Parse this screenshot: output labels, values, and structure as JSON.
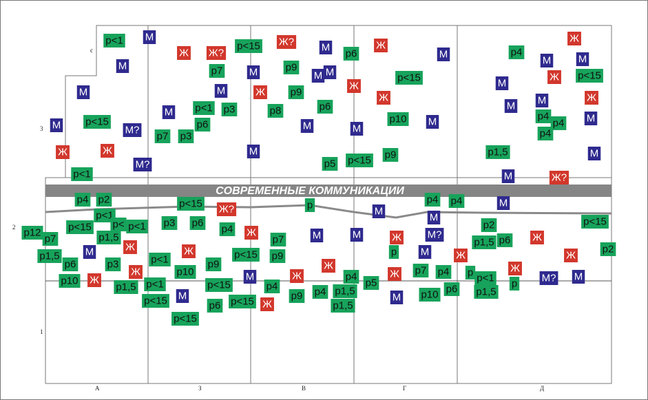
{
  "band_title": "СОВРЕМЕННЫЕ КОММУНИКАЦИИ",
  "row_labels": [
    "є",
    "3",
    "2",
    "1"
  ],
  "columns": [
    "А",
    "З",
    "В",
    "Г",
    "Д"
  ],
  "colors": {
    "green": "#17a35b",
    "red": "#d2372c",
    "blue": "#2f2a8e"
  },
  "tags": [
    {
      "text": "р<1",
      "kind": "green"
    },
    {
      "text": "М",
      "kind": "blue"
    },
    {
      "text": "Ж",
      "kind": "red"
    },
    {
      "text": "Ж?",
      "kind": "red"
    },
    {
      "text": "р<15",
      "kind": "green"
    },
    {
      "text": "Ж?",
      "kind": "red"
    },
    {
      "text": "М",
      "kind": "blue"
    },
    {
      "text": "р6",
      "kind": "green"
    },
    {
      "text": "Ж",
      "kind": "red"
    },
    {
      "text": "М",
      "kind": "blue"
    },
    {
      "text": "р4",
      "kind": "green"
    },
    {
      "text": "Ж",
      "kind": "red"
    },
    {
      "text": "М",
      "kind": "blue"
    },
    {
      "text": "М",
      "kind": "blue"
    },
    {
      "text": "М",
      "kind": "blue"
    },
    {
      "text": "р7",
      "kind": "green"
    },
    {
      "text": "М",
      "kind": "blue"
    },
    {
      "text": "р9",
      "kind": "green"
    },
    {
      "text": "М",
      "kind": "blue"
    },
    {
      "text": "М",
      "kind": "blue"
    },
    {
      "text": "р<15",
      "kind": "green"
    },
    {
      "text": "Ж",
      "kind": "red"
    },
    {
      "text": "р<15",
      "kind": "green"
    },
    {
      "text": "М",
      "kind": "blue"
    },
    {
      "text": "М",
      "kind": "blue"
    },
    {
      "text": "Ж",
      "kind": "red"
    },
    {
      "text": "р9",
      "kind": "green"
    },
    {
      "text": "Ж",
      "kind": "red"
    },
    {
      "text": "М",
      "kind": "blue"
    },
    {
      "text": "Ж",
      "kind": "red"
    },
    {
      "text": "М",
      "kind": "blue"
    },
    {
      "text": "Ж",
      "kind": "red"
    },
    {
      "text": "р<1",
      "kind": "green"
    },
    {
      "text": "р3",
      "kind": "green"
    },
    {
      "text": "М",
      "kind": "blue"
    },
    {
      "text": "р8",
      "kind": "green"
    },
    {
      "text": "р6",
      "kind": "green"
    },
    {
      "text": "М",
      "kind": "blue"
    },
    {
      "text": "р4",
      "kind": "green"
    },
    {
      "text": "р4",
      "kind": "green"
    },
    {
      "text": "М",
      "kind": "blue"
    },
    {
      "text": "р<15",
      "kind": "green"
    },
    {
      "text": "р6",
      "kind": "green"
    },
    {
      "text": "М",
      "kind": "blue"
    },
    {
      "text": "р10",
      "kind": "green"
    },
    {
      "text": "М",
      "kind": "blue"
    },
    {
      "text": "М",
      "kind": "blue"
    },
    {
      "text": "М?",
      "kind": "blue"
    },
    {
      "text": "р7",
      "kind": "green"
    },
    {
      "text": "р3",
      "kind": "green"
    },
    {
      "text": "р4",
      "kind": "green"
    },
    {
      "text": "М",
      "kind": "blue"
    },
    {
      "text": "Ж",
      "kind": "red"
    },
    {
      "text": "Ж",
      "kind": "red"
    },
    {
      "text": "М",
      "kind": "blue"
    },
    {
      "text": "р9",
      "kind": "green"
    },
    {
      "text": "р1,5",
      "kind": "green"
    },
    {
      "text": "М",
      "kind": "blue"
    },
    {
      "text": "М?",
      "kind": "blue"
    },
    {
      "text": "р5",
      "kind": "green"
    },
    {
      "text": "р<15",
      "kind": "green"
    },
    {
      "text": "р<1",
      "kind": "green"
    },
    {
      "text": "М",
      "kind": "blue"
    },
    {
      "text": "Ж?",
      "kind": "red"
    },
    {
      "text": "р4",
      "kind": "green"
    },
    {
      "text": "р2",
      "kind": "green"
    },
    {
      "text": "р<1",
      "kind": "green"
    },
    {
      "text": "р<",
      "kind": "green"
    },
    {
      "text": "р<1",
      "kind": "green"
    },
    {
      "text": "р<15",
      "kind": "green"
    },
    {
      "text": "Ж?",
      "kind": "red"
    },
    {
      "text": "р",
      "kind": "green"
    },
    {
      "text": "М",
      "kind": "blue"
    },
    {
      "text": "р4",
      "kind": "green"
    },
    {
      "text": "р4",
      "kind": "green"
    },
    {
      "text": "М",
      "kind": "blue"
    },
    {
      "text": "М",
      "kind": "blue"
    },
    {
      "text": "р2",
      "kind": "green"
    },
    {
      "text": "р<15",
      "kind": "green"
    },
    {
      "text": "р12",
      "kind": "green"
    },
    {
      "text": "р7",
      "kind": "green"
    },
    {
      "text": "р<15",
      "kind": "green"
    },
    {
      "text": "р3",
      "kind": "green"
    },
    {
      "text": "р6",
      "kind": "green"
    },
    {
      "text": "р4",
      "kind": "green"
    },
    {
      "text": "Ж",
      "kind": "red"
    },
    {
      "text": "р1,5",
      "kind": "green"
    },
    {
      "text": "р7",
      "kind": "green"
    },
    {
      "text": "М",
      "kind": "blue"
    },
    {
      "text": "М",
      "kind": "blue"
    },
    {
      "text": "Ж",
      "kind": "red"
    },
    {
      "text": "М?",
      "kind": "blue"
    },
    {
      "text": "р1,5",
      "kind": "green"
    },
    {
      "text": "р6",
      "kind": "green"
    },
    {
      "text": "Ж",
      "kind": "red"
    },
    {
      "text": "р2",
      "kind": "green"
    },
    {
      "text": "Ж",
      "kind": "red"
    },
    {
      "text": "М",
      "kind": "blue"
    },
    {
      "text": "р1,5",
      "kind": "green"
    },
    {
      "text": "р<1",
      "kind": "green"
    },
    {
      "text": "Ж",
      "kind": "red"
    },
    {
      "text": "р<15",
      "kind": "green"
    },
    {
      "text": "р9",
      "kind": "green"
    },
    {
      "text": "р",
      "kind": "green"
    },
    {
      "text": "М",
      "kind": "blue"
    },
    {
      "text": "Ж",
      "kind": "red"
    },
    {
      "text": "Ж",
      "kind": "red"
    },
    {
      "text": "р6",
      "kind": "green"
    },
    {
      "text": "р3",
      "kind": "green"
    },
    {
      "text": "р9",
      "kind": "green"
    },
    {
      "text": "Ж",
      "kind": "red"
    },
    {
      "text": "р7",
      "kind": "green"
    },
    {
      "text": "р4",
      "kind": "green"
    },
    {
      "text": "р",
      "kind": "green"
    },
    {
      "text": "Ж",
      "kind": "red"
    },
    {
      "text": "р10",
      "kind": "green"
    },
    {
      "text": "Ж",
      "kind": "red"
    },
    {
      "text": "Ж",
      "kind": "red"
    },
    {
      "text": "р10",
      "kind": "green"
    },
    {
      "text": "М",
      "kind": "blue"
    },
    {
      "text": "Ж",
      "kind": "red"
    },
    {
      "text": "р4",
      "kind": "green"
    },
    {
      "text": "Ж",
      "kind": "red"
    },
    {
      "text": "р<1",
      "kind": "green"
    },
    {
      "text": "М?",
      "kind": "blue"
    },
    {
      "text": "М",
      "kind": "blue"
    },
    {
      "text": "р1,5",
      "kind": "green"
    },
    {
      "text": "р<1",
      "kind": "green"
    },
    {
      "text": "р<15",
      "kind": "green"
    },
    {
      "text": "р4",
      "kind": "green"
    },
    {
      "text": "р5",
      "kind": "green"
    },
    {
      "text": "р4",
      "kind": "green"
    },
    {
      "text": "р1,5",
      "kind": "green"
    },
    {
      "text": "р6",
      "kind": "green"
    },
    {
      "text": "р10",
      "kind": "green"
    },
    {
      "text": "р1,5",
      "kind": "green"
    },
    {
      "text": "р",
      "kind": "green"
    },
    {
      "text": "р<15",
      "kind": "green"
    },
    {
      "text": "М",
      "kind": "blue"
    },
    {
      "text": "р9",
      "kind": "green"
    },
    {
      "text": "р6",
      "kind": "green"
    },
    {
      "text": "р<15",
      "kind": "green"
    },
    {
      "text": "Ж",
      "kind": "red"
    },
    {
      "text": "р1,5",
      "kind": "green"
    },
    {
      "text": "М",
      "kind": "blue"
    },
    {
      "text": "р<15",
      "kind": "green"
    }
  ]
}
